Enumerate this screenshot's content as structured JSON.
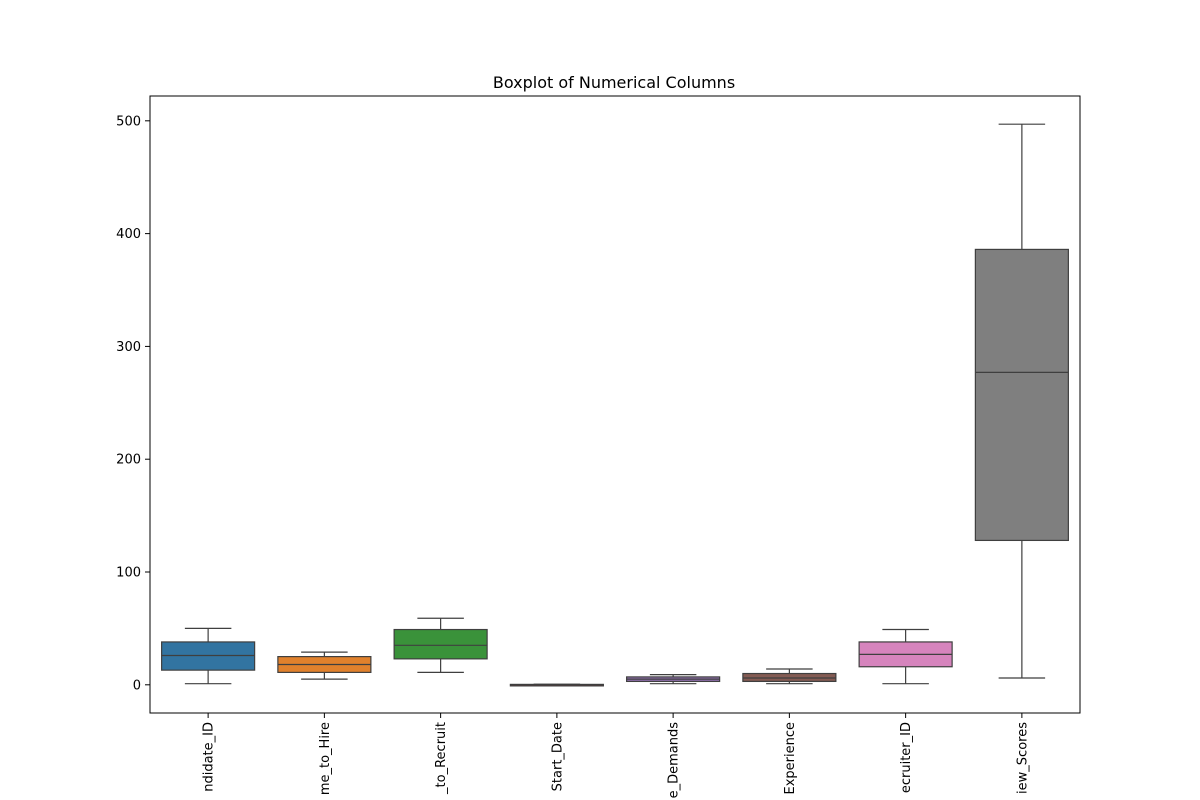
{
  "chart_data": {
    "type": "boxplot",
    "title": "Boxplot of Numerical Columns",
    "xlabel": "",
    "ylabel": "",
    "ylim": [
      -25,
      522
    ],
    "yticks": [
      0,
      100,
      200,
      300,
      400,
      500
    ],
    "grid": false,
    "categories": [
      "ndidate_ID",
      "me_to_Hire",
      "_to_Recruit",
      "Start_Date",
      "e_Demands",
      "Experience",
      "ecruiter_ID",
      "iew_Scores"
    ],
    "boxes": [
      {
        "label": "ndidate_ID",
        "min": 1,
        "q1": 13,
        "median": 26,
        "q3": 38,
        "max": 50,
        "color": "#3274a1"
      },
      {
        "label": "me_to_Hire",
        "min": 5,
        "q1": 11,
        "median": 18,
        "q3": 25,
        "max": 29,
        "color": "#e1812c"
      },
      {
        "label": "_to_Recruit",
        "min": 11,
        "q1": 23,
        "median": 35,
        "q3": 49,
        "max": 59,
        "color": "#3a923a"
      },
      {
        "label": "Start_Date",
        "min": -0.5,
        "q1": -0.3,
        "median": 0,
        "q3": 0.3,
        "max": 0.5,
        "color": "#c03d3e"
      },
      {
        "label": "e_Demands",
        "min": 1,
        "q1": 3,
        "median": 5,
        "q3": 7,
        "max": 9,
        "color": "#9372b2"
      },
      {
        "label": "Experience",
        "min": 1,
        "q1": 3,
        "median": 6,
        "q3": 10,
        "max": 14,
        "color": "#845b53"
      },
      {
        "label": "ecruiter_ID",
        "min": 1,
        "q1": 16,
        "median": 27,
        "q3": 38,
        "max": 49,
        "color": "#d684bd"
      },
      {
        "label": "iew_Scores",
        "min": 6,
        "q1": 128,
        "median": 277,
        "q3": 386,
        "max": 497,
        "color": "#7f7f7f"
      }
    ]
  }
}
